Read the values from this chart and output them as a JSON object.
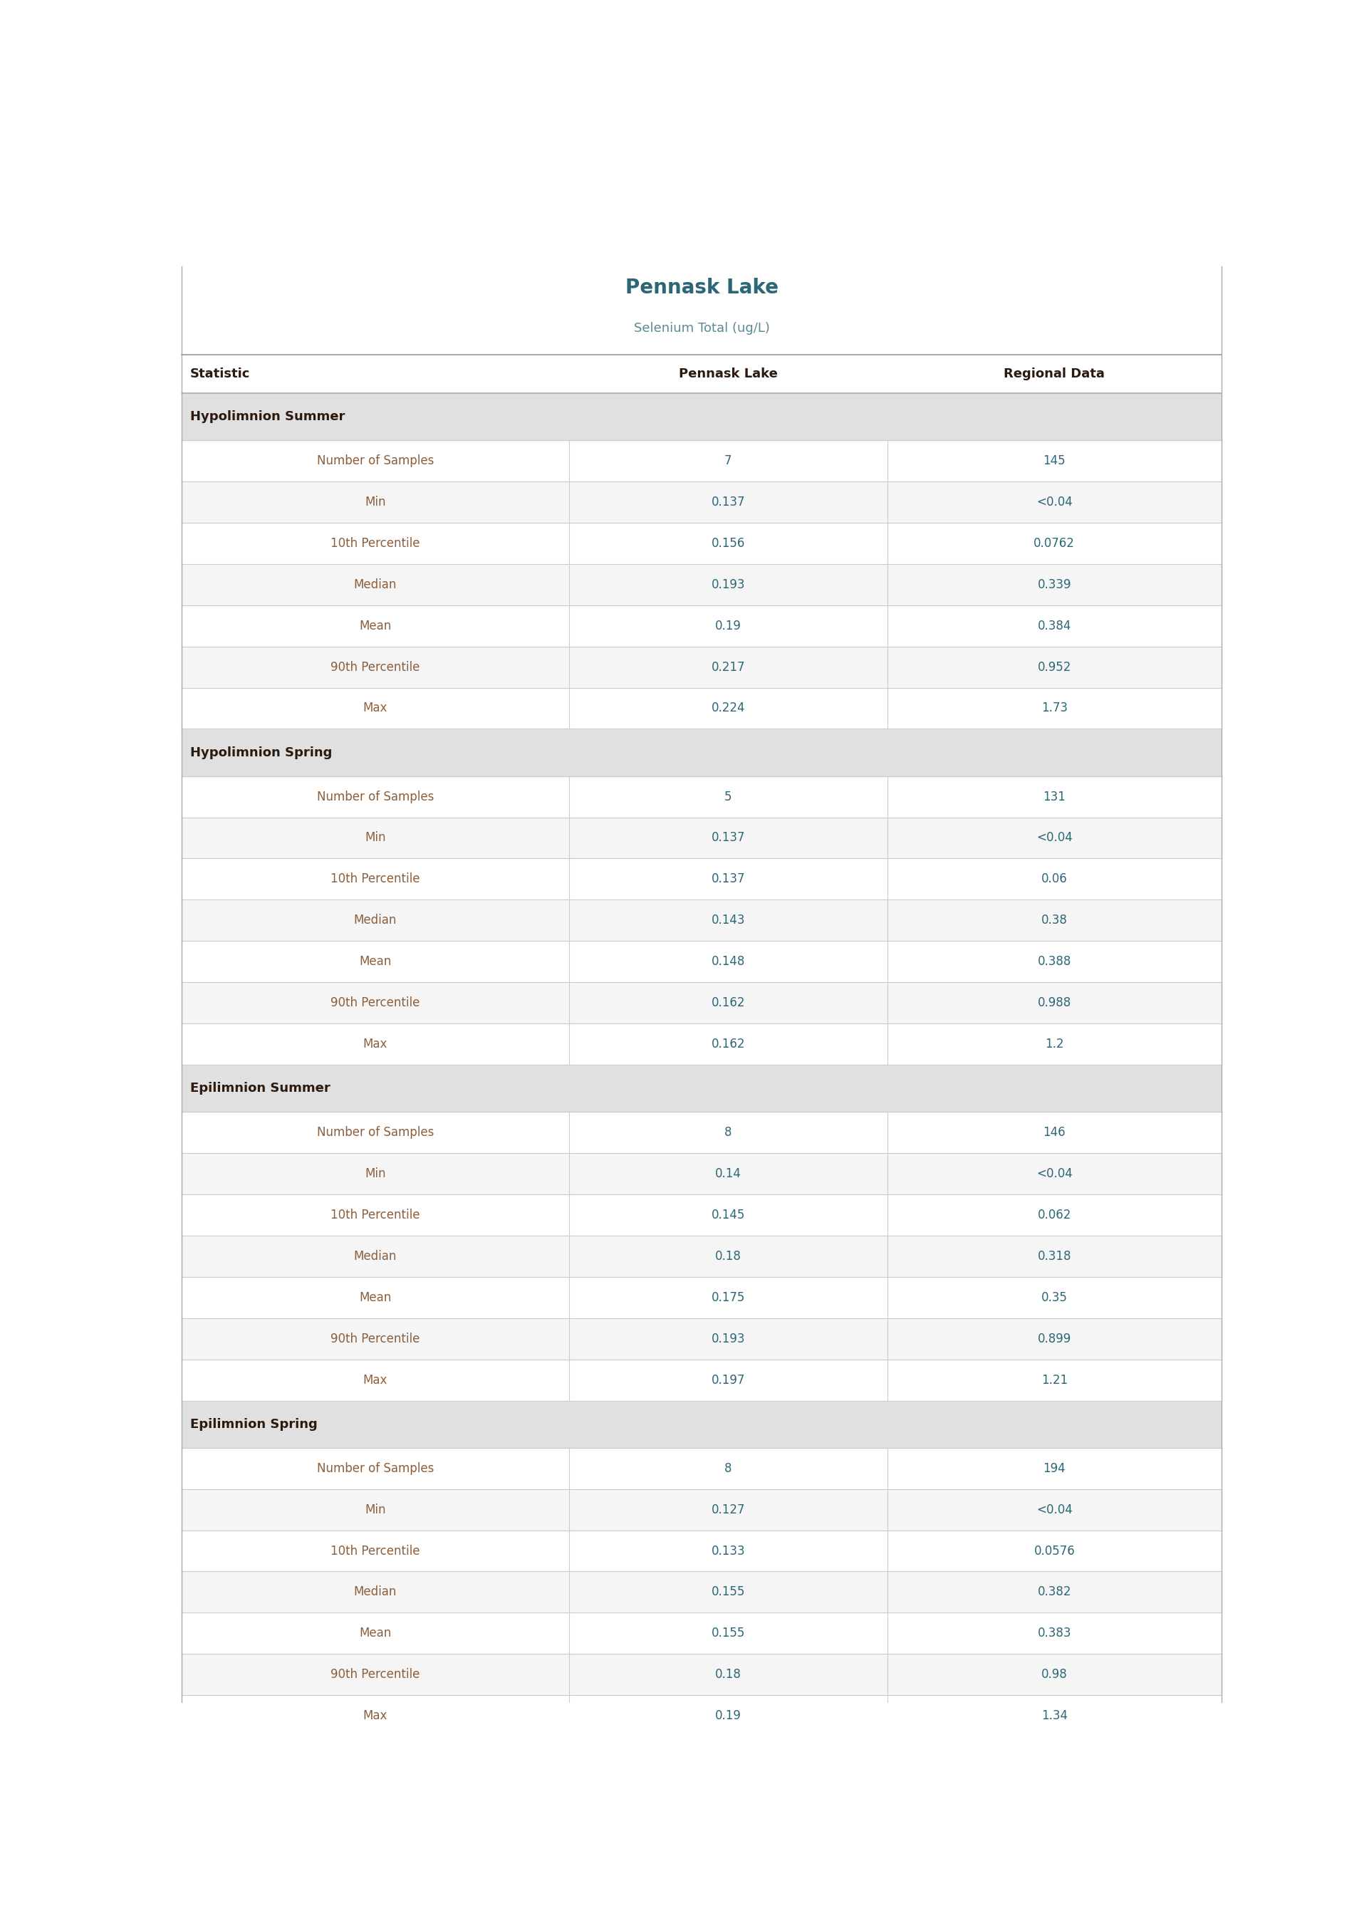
{
  "title": "Pennask Lake",
  "subtitle": "Selenium Total (ug/L)",
  "col_headers": [
    "Statistic",
    "Pennask Lake",
    "Regional Data"
  ],
  "sections": [
    {
      "section_header": "Hypolimnion Summer",
      "rows": [
        [
          "Number of Samples",
          "7",
          "145"
        ],
        [
          "Min",
          "0.137",
          "<0.04"
        ],
        [
          "10th Percentile",
          "0.156",
          "0.0762"
        ],
        [
          "Median",
          "0.193",
          "0.339"
        ],
        [
          "Mean",
          "0.19",
          "0.384"
        ],
        [
          "90th Percentile",
          "0.217",
          "0.952"
        ],
        [
          "Max",
          "0.224",
          "1.73"
        ]
      ]
    },
    {
      "section_header": "Hypolimnion Spring",
      "rows": [
        [
          "Number of Samples",
          "5",
          "131"
        ],
        [
          "Min",
          "0.137",
          "<0.04"
        ],
        [
          "10th Percentile",
          "0.137",
          "0.06"
        ],
        [
          "Median",
          "0.143",
          "0.38"
        ],
        [
          "Mean",
          "0.148",
          "0.388"
        ],
        [
          "90th Percentile",
          "0.162",
          "0.988"
        ],
        [
          "Max",
          "0.162",
          "1.2"
        ]
      ]
    },
    {
      "section_header": "Epilimnion Summer",
      "rows": [
        [
          "Number of Samples",
          "8",
          "146"
        ],
        [
          "Min",
          "0.14",
          "<0.04"
        ],
        [
          "10th Percentile",
          "0.145",
          "0.062"
        ],
        [
          "Median",
          "0.18",
          "0.318"
        ],
        [
          "Mean",
          "0.175",
          "0.35"
        ],
        [
          "90th Percentile",
          "0.193",
          "0.899"
        ],
        [
          "Max",
          "0.197",
          "1.21"
        ]
      ]
    },
    {
      "section_header": "Epilimnion Spring",
      "rows": [
        [
          "Number of Samples",
          "8",
          "194"
        ],
        [
          "Min",
          "0.127",
          "<0.04"
        ],
        [
          "10th Percentile",
          "0.133",
          "0.0576"
        ],
        [
          "Median",
          "0.155",
          "0.382"
        ],
        [
          "Mean",
          "0.155",
          "0.383"
        ],
        [
          "90th Percentile",
          "0.18",
          "0.98"
        ],
        [
          "Max",
          "0.19",
          "1.34"
        ]
      ]
    }
  ],
  "title_color": "#2b6777",
  "subtitle_color": "#5a8a96",
  "header_text_color": "#2c1a0e",
  "section_bg_color": "#e0e0e0",
  "section_text_color": "#2c1a0e",
  "row_bg_even": "#f5f5f5",
  "row_bg_odd": "#ffffff",
  "data_text_color": "#2b6777",
  "statistic_text_color": "#8b5e3c",
  "header_line_color": "#aaaaaa",
  "cell_line_color": "#cccccc",
  "title_fontsize": 20,
  "subtitle_fontsize": 13,
  "header_fontsize": 13,
  "section_fontsize": 13,
  "data_fontsize": 12
}
